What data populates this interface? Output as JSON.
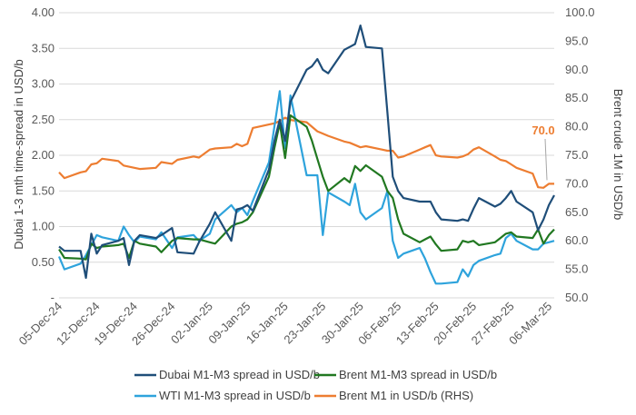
{
  "chart_data": {
    "type": "line",
    "title": "",
    "ylabel": "Dubai 1-3 mth time-spread in USD/b",
    "y2label": "Brent crude 1M in USD/b",
    "ylim": [
      0,
      4.0
    ],
    "y2lim": [
      50.0,
      100.0
    ],
    "yticks": [
      "-",
      "0.50",
      "1.00",
      "1.50",
      "2.00",
      "2.50",
      "3.00",
      "3.50",
      "4.00"
    ],
    "y2ticks": [
      "50.0",
      "55.0",
      "60.0",
      "65.0",
      "70.0",
      "75.0",
      "80.0",
      "85.0",
      "90.0",
      "95.0",
      "100.0"
    ],
    "xticks": [
      "05-Dec-24",
      "12-Dec-24",
      "19-Dec-24",
      "26-Dec-24",
      "02-Jan-25",
      "09-Jan-25",
      "16-Jan-25",
      "23-Jan-25",
      "30-Jan-25",
      "06-Feb-25",
      "13-Feb-25",
      "20-Feb-25",
      "27-Feb-25",
      "06-Mar-25"
    ],
    "grid": "horizontal",
    "legend_position": "bottom",
    "annotation": {
      "text": "70.0",
      "series": "Brent M1 in USD/b (RHS)"
    },
    "x": [
      "2024-12-05",
      "2024-12-06",
      "2024-12-09",
      "2024-12-10",
      "2024-12-11",
      "2024-12-12",
      "2024-12-13",
      "2024-12-16",
      "2024-12-17",
      "2024-12-18",
      "2024-12-19",
      "2024-12-20",
      "2024-12-23",
      "2024-12-24",
      "2024-12-26",
      "2024-12-27",
      "2024-12-30",
      "2024-12-31",
      "2025-01-02",
      "2025-01-03",
      "2025-01-06",
      "2025-01-07",
      "2025-01-08",
      "2025-01-09",
      "2025-01-10",
      "2025-01-13",
      "2025-01-14",
      "2025-01-15",
      "2025-01-16",
      "2025-01-17",
      "2025-01-20",
      "2025-01-21",
      "2025-01-22",
      "2025-01-23",
      "2025-01-24",
      "2025-01-27",
      "2025-01-28",
      "2025-01-29",
      "2025-01-30",
      "2025-01-31",
      "2025-02-03",
      "2025-02-04",
      "2025-02-05",
      "2025-02-06",
      "2025-02-07",
      "2025-02-10",
      "2025-02-11",
      "2025-02-12",
      "2025-02-13",
      "2025-02-14",
      "2025-02-17",
      "2025-02-18",
      "2025-02-19",
      "2025-02-20",
      "2025-02-21",
      "2025-02-24",
      "2025-02-25",
      "2025-02-26",
      "2025-02-27",
      "2025-02-28",
      "2025-03-03",
      "2025-03-04",
      "2025-03-05",
      "2025-03-06",
      "2025-03-07"
    ],
    "series": [
      {
        "name": "Dubai M1-M3 spread in USD/b",
        "color": "#1f4e79",
        "axis": "left",
        "values": [
          0.72,
          0.66,
          0.66,
          0.28,
          0.9,
          0.62,
          0.74,
          0.8,
          0.84,
          0.46,
          0.8,
          0.88,
          0.84,
          0.88,
          0.98,
          0.64,
          0.62,
          0.78,
          1.04,
          1.2,
          0.8,
          1.24,
          1.26,
          1.3,
          1.22,
          1.8,
          2.2,
          2.5,
          2.2,
          2.75,
          3.2,
          3.25,
          3.35,
          3.2,
          3.15,
          3.48,
          3.52,
          3.56,
          3.82,
          3.52,
          3.5,
          2.6,
          1.7,
          1.5,
          1.4,
          1.35,
          1.35,
          1.35,
          1.2,
          1.1,
          1.08,
          1.1,
          1.08,
          1.25,
          1.4,
          1.28,
          1.32,
          1.4,
          1.5,
          1.35,
          1.2,
          0.95,
          1.1,
          1.3,
          1.44
        ]
      },
      {
        "name": "Brent M1-M3 spread in USD/b",
        "color": "#217821",
        "axis": "left",
        "values": [
          0.68,
          0.56,
          0.55,
          0.54,
          0.76,
          0.7,
          0.72,
          0.74,
          0.76,
          0.56,
          0.8,
          0.76,
          0.72,
          0.64,
          0.8,
          0.84,
          0.82,
          0.82,
          0.78,
          0.76,
          1.0,
          1.04,
          1.06,
          1.1,
          1.2,
          1.7,
          2.1,
          2.45,
          1.96,
          2.56,
          2.4,
          2.2,
          1.95,
          1.7,
          1.5,
          1.68,
          1.62,
          1.85,
          1.78,
          1.86,
          1.7,
          1.5,
          1.4,
          1.1,
          0.9,
          0.78,
          0.82,
          0.86,
          0.75,
          0.66,
          0.68,
          0.8,
          0.78,
          0.8,
          0.74,
          0.78,
          0.84,
          0.9,
          0.92,
          0.86,
          0.84,
          0.96,
          0.76,
          0.88,
          0.96
        ]
      },
      {
        "name": "WTI M1-M3 spread in USD/b",
        "color": "#2ea3dc",
        "axis": "left",
        "values": [
          0.58,
          0.4,
          0.48,
          0.6,
          0.74,
          0.88,
          0.85,
          0.8,
          1.0,
          0.88,
          0.78,
          0.86,
          0.82,
          0.92,
          0.7,
          0.85,
          0.88,
          0.8,
          0.9,
          1.1,
          1.3,
          1.2,
          1.26,
          1.16,
          1.36,
          1.9,
          2.4,
          2.9,
          2.1,
          2.84,
          1.72,
          1.72,
          1.72,
          0.88,
          1.48,
          1.35,
          1.3,
          1.6,
          1.2,
          1.1,
          1.26,
          1.5,
          0.8,
          0.56,
          0.62,
          0.7,
          0.55,
          0.36,
          0.2,
          0.2,
          0.22,
          0.4,
          0.3,
          0.46,
          0.52,
          0.6,
          0.62,
          0.84,
          0.9,
          0.8,
          0.68,
          0.68,
          0.76,
          0.78,
          0.8
        ]
      },
      {
        "name": "Brent M1 in USD/b (RHS)",
        "color": "#ed7d31",
        "axis": "right",
        "values": [
          72.0,
          71.0,
          72.0,
          72.2,
          73.4,
          73.6,
          74.4,
          74.0,
          73.2,
          73.0,
          72.8,
          72.6,
          72.8,
          73.8,
          73.5,
          74.2,
          74.8,
          74.6,
          76.0,
          76.2,
          76.4,
          77.0,
          76.6,
          77.0,
          79.8,
          80.4,
          80.6,
          81.0,
          81.6,
          81.2,
          80.8,
          80.0,
          79.2,
          78.8,
          78.4,
          77.4,
          77.2,
          76.8,
          76.4,
          76.6,
          76.0,
          75.8,
          75.8,
          74.6,
          74.8,
          76.0,
          76.4,
          76.8,
          75.0,
          74.8,
          74.6,
          74.8,
          75.2,
          76.0,
          76.4,
          74.8,
          74.2,
          74.0,
          73.4,
          72.8,
          71.8,
          69.4,
          69.3,
          70.0,
          70.0
        ]
      }
    ]
  }
}
